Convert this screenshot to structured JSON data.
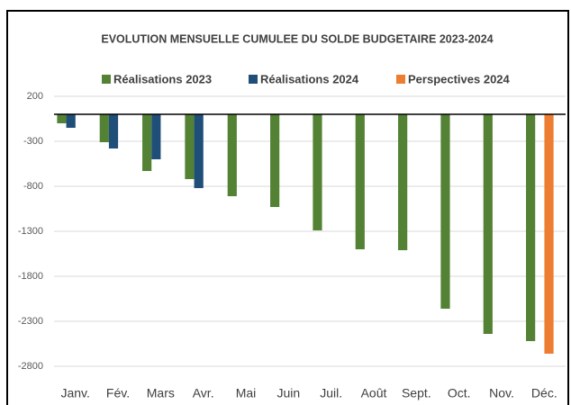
{
  "chart_data": {
    "type": "bar",
    "title": "EVOLUTION MENSUELLE CUMULEE DU SOLDE BUDGETAIRE 2023-2024",
    "categories": [
      "Janv.",
      "Fév.",
      "Mars",
      "Avr.",
      "Mai",
      "Juin",
      "Juil.",
      "Août",
      "Sept.",
      "Oct.",
      "Nov.",
      "Déc."
    ],
    "series": [
      {
        "name": "Réalisations 2023",
        "color": "#548235",
        "values": [
          -100,
          -310,
          -630,
          -720,
          -910,
          -1030,
          -1290,
          -1500,
          -1510,
          -2160,
          -2440,
          -2520
        ]
      },
      {
        "name": "Réalisations 2024",
        "color": "#1f4e79",
        "values": [
          -150,
          -380,
          -500,
          -820,
          null,
          null,
          null,
          null,
          null,
          null,
          null,
          null
        ]
      },
      {
        "name": "Perspectives 2024",
        "color": "#ed7d31",
        "values": [
          null,
          null,
          null,
          null,
          null,
          null,
          null,
          null,
          null,
          null,
          null,
          -2660
        ]
      }
    ],
    "ylim": [
      -3000,
      200
    ],
    "yticks": [
      200,
      -300,
      -800,
      -1300,
      -1800,
      -2300,
      -2800
    ],
    "grid": true,
    "legend": "top"
  }
}
